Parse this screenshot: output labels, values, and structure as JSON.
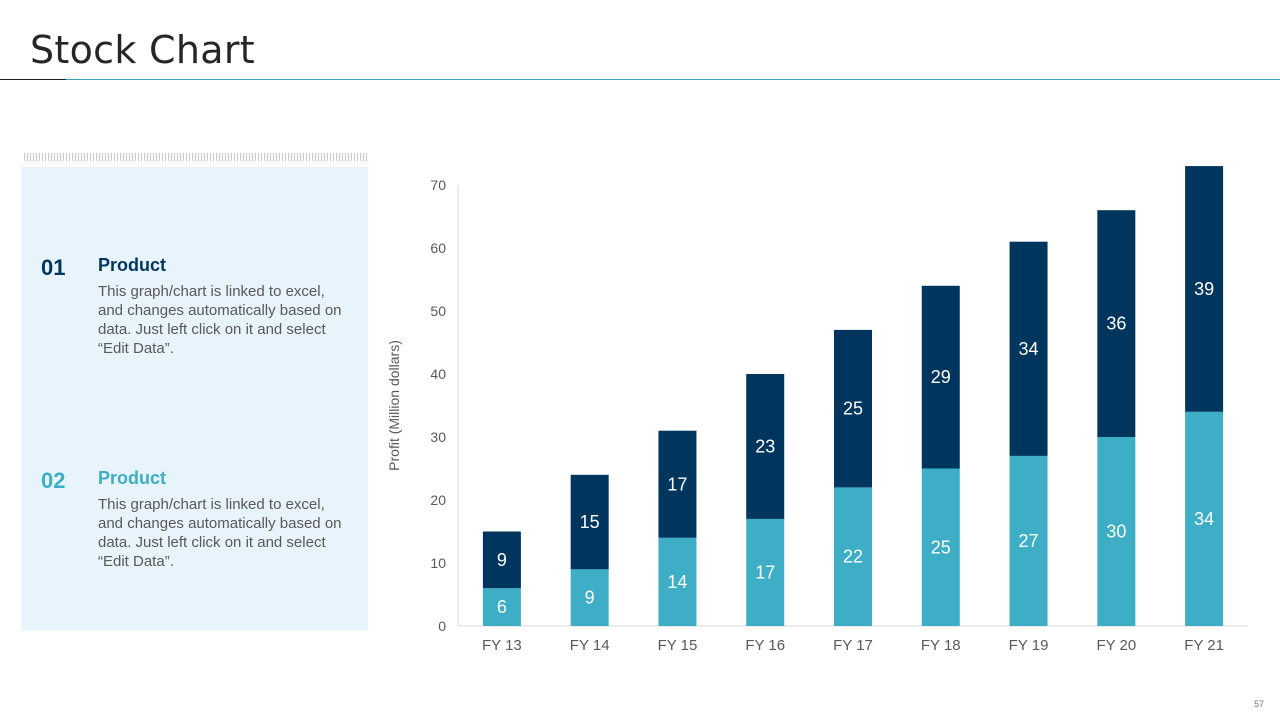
{
  "slide": {
    "title": "Stock Chart",
    "page_number": "57"
  },
  "panel": {
    "items": [
      {
        "number": "01",
        "heading": "Product",
        "description": "This graph/chart is linked to excel, and changes automatically based on data. Just left click on it and select “Edit Data”."
      },
      {
        "number": "02",
        "heading": "Product",
        "description": "This graph/chart is linked to excel, and changes automatically based on data. Just left click on it and select “Edit Data”."
      }
    ]
  },
  "colors": {
    "dark_series": "#00365d",
    "light_series": "#3daec6"
  },
  "chart_data": {
    "type": "bar",
    "stacked": true,
    "title": "",
    "xlabel": "",
    "ylabel": "Profit  (Million dollars)",
    "ylim": [
      0,
      70
    ],
    "yticks": [
      0,
      10,
      20,
      30,
      40,
      50,
      60,
      70
    ],
    "categories": [
      "FY 13",
      "FY 14",
      "FY 15",
      "FY 16",
      "FY 17",
      "FY 18",
      "FY 19",
      "FY 20",
      "FY 21"
    ],
    "series": [
      {
        "name": "Product 02",
        "color": "#3daec6",
        "values": [
          6,
          9,
          14,
          17,
          22,
          25,
          27,
          30,
          34
        ]
      },
      {
        "name": "Product 01",
        "color": "#00365d",
        "values": [
          9,
          15,
          17,
          23,
          25,
          29,
          34,
          36,
          39
        ]
      }
    ],
    "data_labels": true,
    "legend": "none",
    "grid": false
  }
}
